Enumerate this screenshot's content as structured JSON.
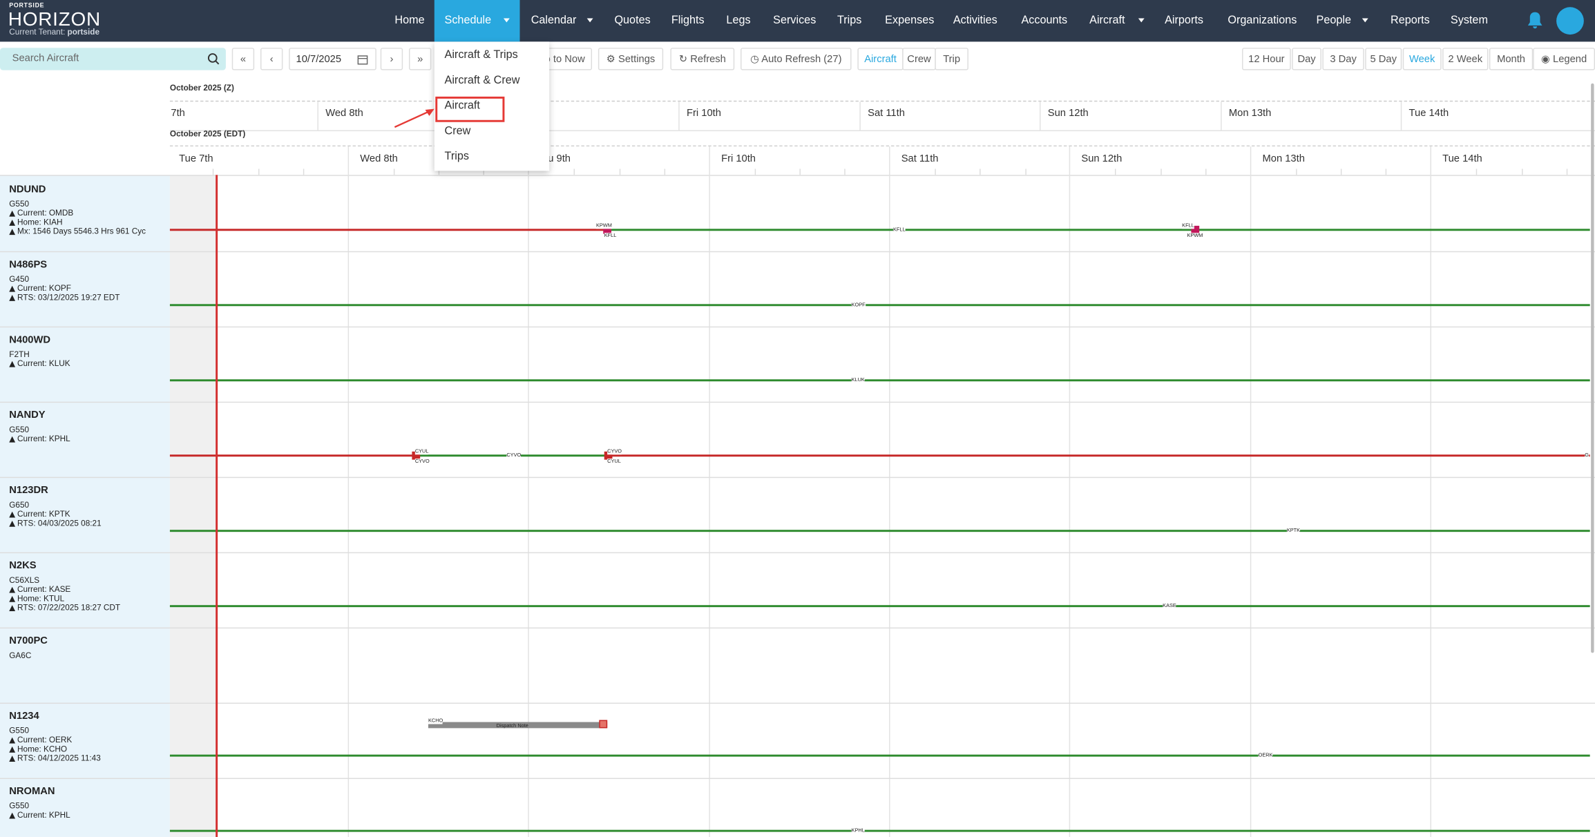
{
  "header": {
    "brand": "PORTSIDE",
    "logo": "HORIZON",
    "tenant_label": "Current Tenant:",
    "tenant": "portside"
  },
  "nav": [
    "Home",
    "Schedule",
    "Calendar",
    "Quotes",
    "Flights",
    "Legs",
    "Services",
    "Trips",
    "Expenses",
    "Activities",
    "Accounts",
    "Aircraft",
    "Airports",
    "Organizations",
    "People",
    "Reports",
    "System"
  ],
  "toolbar": {
    "search_placeholder": "Search Aircraft",
    "date": "10/7/2025",
    "go_to_now": "Go to Now",
    "settings": "Settings",
    "refresh": "Refresh",
    "auto_refresh": "Auto Refresh (27)",
    "view_tabs": [
      "Aircraft",
      "Crew",
      "Trip"
    ],
    "ranges": [
      "12 Hour",
      "Day",
      "3 Day",
      "5 Day",
      "Week",
      "2 Week",
      "Month"
    ],
    "legend": "Legend"
  },
  "schedule_menu": [
    "Aircraft & Trips",
    "Aircraft & Crew",
    "Aircraft",
    "Crew",
    "Trips"
  ],
  "timeline": {
    "zulu_label": "October 2025 (Z)",
    "zulu_days": [
      "7th",
      "Wed 8th",
      "Fri 10th",
      "Sat 11th",
      "Sun 12th",
      "Mon 13th",
      "Tue 14th"
    ],
    "local_label": "October 2025 (EDT)",
    "local_days": [
      "Tue 7th",
      "Wed 8th",
      "Thu 9th",
      "Fri 10th",
      "Sat 11th",
      "Sun 12th",
      "Mon 13th",
      "Tue 14th"
    ]
  },
  "aircraft": [
    {
      "tail": "NDUND",
      "type": "G550",
      "details": [
        "Current: OMDB",
        "Home: KIAH",
        "Mx: 1546 Days 5546.3 Hrs 961 Cyc"
      ],
      "labels": [
        "KPWM",
        "KFLL",
        "KFLL",
        "KFLL",
        "KPWM"
      ]
    },
    {
      "tail": "N486PS",
      "type": "G450",
      "details": [
        "Current: KOPF",
        "RTS: 03/12/2025 19:27 EDT"
      ],
      "labels": [
        "KOPF"
      ]
    },
    {
      "tail": "N400WD",
      "type": "F2TH",
      "details": [
        "Current: KLUK"
      ],
      "labels": [
        "KLUK"
      ]
    },
    {
      "tail": "NANDY",
      "type": "G550",
      "details": [
        "Current: KPHL"
      ],
      "labels": [
        "CYUL",
        "CYVO",
        "CYVO",
        "CYVO",
        "CYUL",
        "G"
      ]
    },
    {
      "tail": "N123DR",
      "type": "G650",
      "details": [
        "Current: KPTK",
        "RTS: 04/03/2025 08:21"
      ],
      "labels": [
        "KPTK"
      ]
    },
    {
      "tail": "N2KS",
      "type": "C56XLS",
      "details": [
        "Current: KASE",
        "Home: KTUL",
        "RTS: 07/22/2025 18:27 CDT"
      ],
      "labels": [
        "KASE"
      ]
    },
    {
      "tail": "N700PC",
      "type": "GA6C",
      "details": [],
      "labels": []
    },
    {
      "tail": "N1234",
      "type": "G550",
      "details": [
        "Current: OERK",
        "Home: KCHO",
        "RTS: 04/12/2025 11:43"
      ],
      "labels": [
        "KCHO",
        "Dispatch Note",
        "OERK"
      ]
    },
    {
      "tail": "NROMAN",
      "type": "G550",
      "details": [
        "Current: KPHL"
      ],
      "labels": [
        "KPHL"
      ]
    }
  ]
}
